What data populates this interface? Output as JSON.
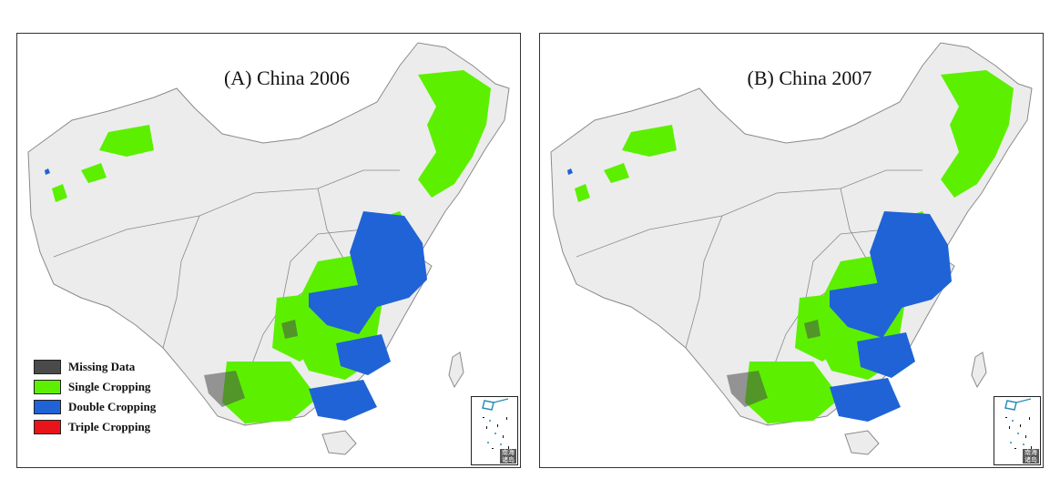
{
  "panels": [
    {
      "title": "(A) China 2006"
    },
    {
      "title": "(B) China 2007"
    }
  ],
  "legend": [
    {
      "label": "Missing Data",
      "color": "#4a4a4a"
    },
    {
      "label": "Single Cropping",
      "color": "#5cf000"
    },
    {
      "label": "Double Cropping",
      "color": "#1f63d6"
    },
    {
      "label": "Triple Cropping",
      "color": "#e8141a"
    }
  ],
  "inset": {
    "text": "南海诸岛"
  },
  "colors": {
    "land": "#ececec",
    "border": "#8a8a8a",
    "single": "#5cf000",
    "double": "#1f63d6",
    "missing": "#4a4a4a"
  }
}
